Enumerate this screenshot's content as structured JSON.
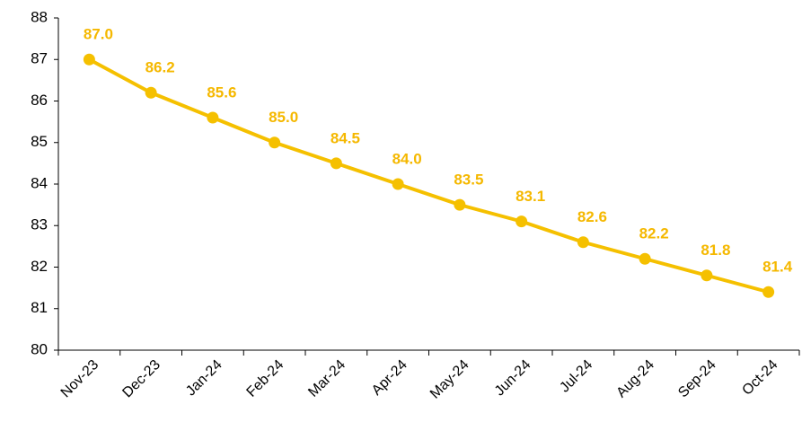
{
  "chart_data": {
    "type": "line",
    "categories": [
      "Nov-23",
      "Dec-23",
      "Jan-24",
      "Feb-24",
      "Mar-24",
      "Apr-24",
      "May-24",
      "Jun-24",
      "Jul-24",
      "Aug-24",
      "Sep-24",
      "Oct-24"
    ],
    "values": [
      87.0,
      86.2,
      85.6,
      85.0,
      84.5,
      84.0,
      83.5,
      83.1,
      82.6,
      82.2,
      81.8,
      81.4
    ],
    "value_labels": [
      "87.0",
      "86.2",
      "85.6",
      "85.0",
      "84.5",
      "84.0",
      "83.5",
      "83.1",
      "82.6",
      "82.2",
      "81.8",
      "81.4"
    ],
    "color": "#f5c000",
    "ylim": [
      80,
      88
    ],
    "yticks": [
      80,
      81,
      82,
      83,
      84,
      85,
      86,
      87,
      88
    ],
    "grid": false
  }
}
